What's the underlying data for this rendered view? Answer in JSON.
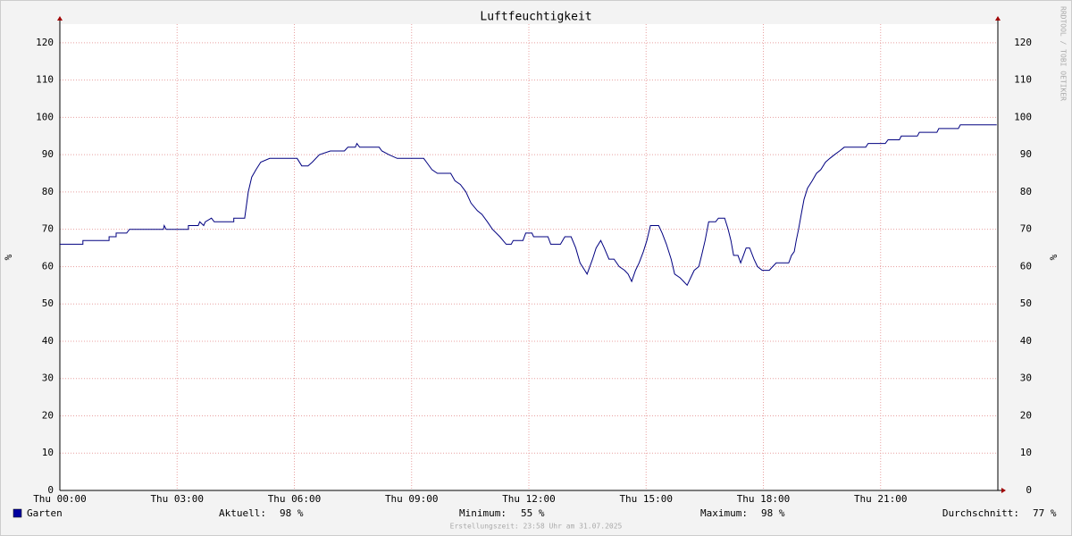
{
  "chart_data": {
    "type": "line",
    "title": "Luftfeuchtigkeit",
    "ylabel": "%",
    "side_text": "RRDTOOL / TOBI OETIKER",
    "footer": "Erstellungszeit: 23:58 Uhr am 31.07.2025",
    "xlim": [
      0,
      24
    ],
    "xticks": [
      {
        "value": 0,
        "label": "Thu 00:00"
      },
      {
        "value": 3,
        "label": "Thu 03:00"
      },
      {
        "value": 6,
        "label": "Thu 06:00"
      },
      {
        "value": 9,
        "label": "Thu 09:00"
      },
      {
        "value": 12,
        "label": "Thu 12:00"
      },
      {
        "value": 15,
        "label": "Thu 15:00"
      },
      {
        "value": 18,
        "label": "Thu 18:00"
      },
      {
        "value": 21,
        "label": "Thu 21:00"
      }
    ],
    "ylim": [
      0,
      125
    ],
    "yticks": [
      0,
      10,
      20,
      30,
      40,
      50,
      60,
      70,
      80,
      90,
      100,
      110,
      120
    ],
    "grid": true,
    "x": [
      0,
      0.59,
      0.59,
      1.26,
      1.26,
      1.44,
      1.44,
      1.71,
      1.78,
      2.65,
      2.67,
      2.72,
      3.29,
      3.29,
      3.54,
      3.58,
      3.68,
      3.72,
      3.88,
      3.95,
      4.45,
      4.45,
      4.73,
      4.82,
      4.91,
      5.02,
      5.14,
      5.37,
      6.07,
      6.19,
      6.35,
      6.46,
      6.64,
      6.92,
      7.28,
      7.37,
      7.56,
      7.6,
      7.67,
      8.17,
      8.24,
      8.42,
      8.63,
      9.31,
      9.38,
      9.52,
      9.66,
      10.0,
      10.11,
      10.25,
      10.39,
      10.52,
      10.68,
      10.8,
      10.94,
      11.07,
      11.26,
      11.42,
      11.55,
      11.6,
      11.85,
      11.92,
      12.08,
      12.12,
      12.49,
      12.56,
      12.81,
      12.92,
      13.08,
      13.2,
      13.31,
      13.43,
      13.49,
      13.63,
      13.72,
      13.84,
      13.93,
      14.05,
      14.18,
      14.31,
      14.45,
      14.54,
      14.63,
      14.73,
      14.82,
      14.93,
      15.02,
      15.11,
      15.32,
      15.41,
      15.52,
      15.64,
      15.73,
      15.87,
      15.96,
      16.05,
      16.14,
      16.23,
      16.35,
      16.42,
      16.51,
      16.6,
      16.78,
      16.85,
      17.01,
      17.1,
      17.17,
      17.24,
      17.35,
      17.42,
      17.49,
      17.56,
      17.65,
      17.76,
      17.85,
      17.97,
      18.15,
      18.24,
      18.33,
      18.65,
      18.72,
      18.79,
      18.84,
      18.9,
      18.97,
      19.04,
      19.13,
      19.25,
      19.36,
      19.47,
      19.59,
      19.7,
      19.82,
      19.95,
      20.07,
      20.62,
      20.68,
      21.12,
      21.19,
      21.48,
      21.53,
      21.94,
      21.99,
      22.44,
      22.49,
      22.99,
      23.04,
      23.97
    ],
    "series": [
      {
        "name": "Garten",
        "color": "#000080",
        "values": [
          66,
          66,
          67,
          67,
          68,
          68,
          69,
          69,
          70,
          70,
          71,
          70,
          70,
          71,
          71,
          72,
          71,
          72,
          73,
          72,
          72,
          73,
          73,
          80,
          84,
          86,
          88,
          89,
          89,
          87,
          87,
          88,
          90,
          91,
          91,
          92,
          92,
          93,
          92,
          92,
          91,
          90,
          89,
          89,
          88,
          86,
          85,
          85,
          83,
          82,
          80,
          77,
          75,
          74,
          72,
          70,
          68,
          66,
          66,
          67,
          67,
          69,
          69,
          68,
          68,
          66,
          66,
          68,
          68,
          65,
          61,
          59,
          58,
          62,
          65,
          67,
          65,
          62,
          62,
          60,
          59,
          58,
          56,
          59,
          61,
          64,
          67,
          71,
          71,
          69,
          66,
          62,
          58,
          57,
          56,
          55,
          57,
          59,
          60,
          63,
          67,
          72,
          72,
          73,
          73,
          70,
          67,
          63,
          63,
          61,
          63,
          65,
          65,
          62,
          60,
          59,
          59,
          60,
          61,
          61,
          63,
          64,
          67,
          70,
          74,
          78,
          81,
          83,
          85,
          86,
          88,
          89,
          90,
          91,
          92,
          92,
          93,
          93,
          94,
          94,
          95,
          95,
          96,
          96,
          97,
          97,
          98,
          98
        ]
      }
    ],
    "legend_color": "#0000a0",
    "stats": [
      {
        "label": "Aktuell:",
        "value": "98 %"
      },
      {
        "label": "Minimum:",
        "value": "55 %"
      },
      {
        "label": "Maximum:",
        "value": "98 %"
      },
      {
        "label": "Durchschnitt:",
        "value": "77 %"
      }
    ]
  }
}
